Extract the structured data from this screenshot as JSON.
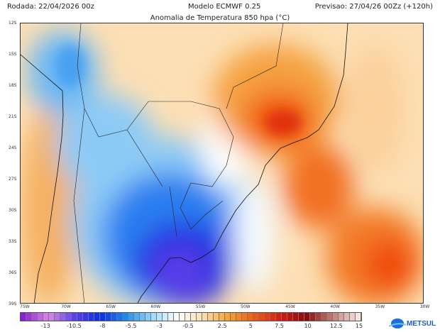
{
  "header": {
    "run": "Rodada: 22/04/2026 00z",
    "model": "Modelo ECMWF 0.25",
    "forecast": "Previsao: 27/04/26 00Zz (+120h)"
  },
  "title": "Anomalia de Temperatura 850 hpa (°C)",
  "axes": {
    "lat_ticks": [
      "12S",
      "15S",
      "18S",
      "21S",
      "24S",
      "27S",
      "30S",
      "33S",
      "36S",
      "39S"
    ],
    "lon_ticks": [
      "75W",
      "70W",
      "65W",
      "60W",
      "55W",
      "50W",
      "45W",
      "40W",
      "35W",
      "30W"
    ]
  },
  "colorbar": {
    "min": -15,
    "max": 15,
    "step": 0.5,
    "labels": [
      "-13",
      "-10.5",
      "-8",
      "-5.5",
      "-3",
      "-0.5",
      "2.5",
      "5",
      "7.5",
      "10",
      "12.5",
      "15"
    ],
    "stops": [
      "#8a1fd8",
      "#d98ae8",
      "#5a3ef0",
      "#0a2ee8",
      "#1e8cf0",
      "#9ad8f8",
      "#ffffff",
      "#fbdcae",
      "#f5a030",
      "#f05a10",
      "#d81a10",
      "#8a0a0a",
      "#c08078",
      "#f4e4e0"
    ]
  },
  "logo": {
    "text": "METSUL"
  }
}
